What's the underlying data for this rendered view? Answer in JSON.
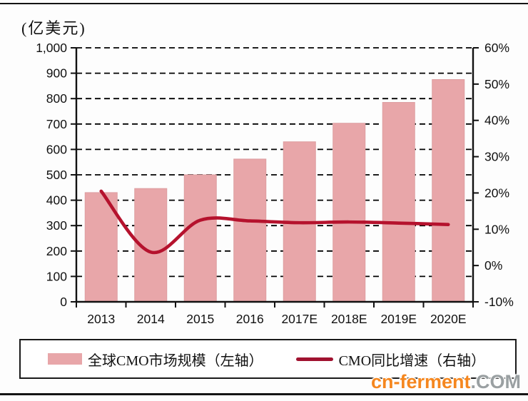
{
  "unit_label": "(亿美元)",
  "chart_data": {
    "type": "bar+line",
    "categories": [
      "2013",
      "2014",
      "2015",
      "2016",
      "2017E",
      "2018E",
      "2019E",
      "2020E"
    ],
    "series": [
      {
        "name": "全球CMO市场规模（左轴）",
        "type": "bar",
        "axis": "left",
        "unit": "亿美元",
        "values": [
          430,
          446,
          500,
          562,
          630,
          703,
          785,
          875
        ],
        "color": "#e8a6a9"
      },
      {
        "name": "CMO同比增速（右轴）",
        "type": "line",
        "axis": "right",
        "unit": "%",
        "values": [
          20.5,
          3.7,
          12.5,
          12.3,
          11.8,
          12.0,
          11.7,
          11.3
        ],
        "color": "#b5122d"
      }
    ],
    "left_axis": {
      "title": "(亿美元)",
      "min": 0,
      "max": 1000,
      "step": 100,
      "tick_labels": [
        "0",
        "100",
        "200",
        "300",
        "400",
        "500",
        "600",
        "700",
        "800",
        "900",
        "1,000"
      ]
    },
    "right_axis": {
      "min": -10,
      "max": 60,
      "step": 10,
      "tick_labels": [
        "-10%",
        "0%",
        "10%",
        "20%",
        "30%",
        "40%",
        "50%",
        "60%"
      ]
    },
    "grid": {
      "horizontal": true,
      "style": "dashed",
      "color": "#000000"
    },
    "legend_position": "bottom",
    "axis_color": "#111111",
    "tick_label_color": "#111111"
  },
  "legend": {
    "items": [
      {
        "label": "全球CMO市场规模（左轴）",
        "swatch_type": "bar",
        "color": "#e8a6a9"
      },
      {
        "label": "CMO同比增速（右轴）",
        "swatch_type": "line",
        "color": "#a01230"
      }
    ]
  },
  "watermark": {
    "primary": "cn-ferment",
    "secondary": ".COM",
    "primary_color": "#f5871f",
    "secondary_color": "#9aa0a2"
  }
}
